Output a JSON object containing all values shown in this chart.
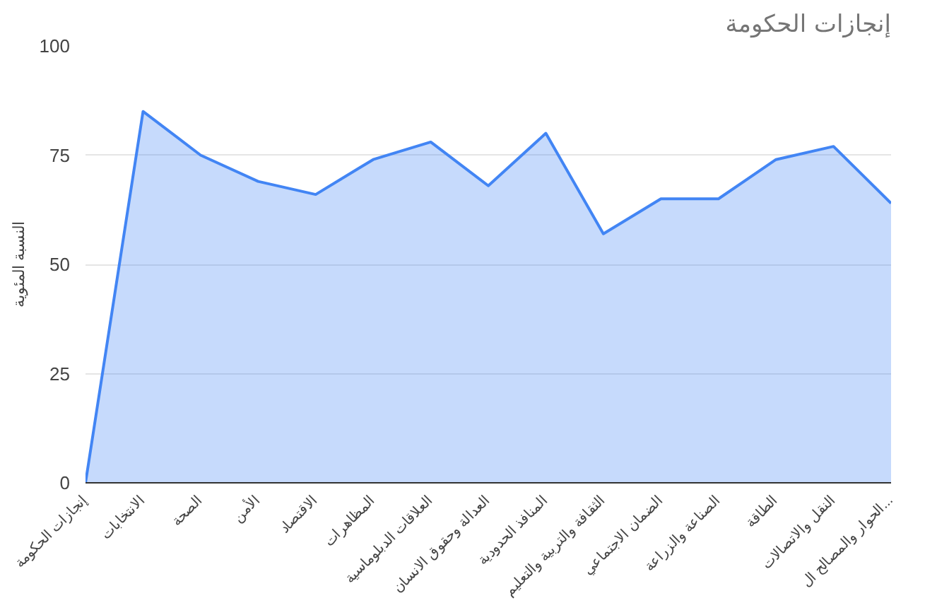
{
  "chart_data": {
    "type": "area",
    "title": "إنجازات الحكومة",
    "ylabel": "النسبة المئوية",
    "categories": [
      "إنجازات الحكومة",
      "الانتخابات",
      "الصحة",
      "الأمن",
      "الاقتصاد",
      "المظاهرات",
      "العلاقات الدبلوماسية",
      "العدالة وحقوق الانسان",
      "المنافذ الحدودية",
      "الثقافة والتربية والتعليم",
      "الضمان الاجتماعي",
      "الصناعة والزراعة",
      "الطاقة",
      "النقل والاتصالات",
      "الحوار والمصالح ال..."
    ],
    "series": [
      {
        "color": "#4285f4",
        "values": [
          0,
          85,
          75,
          69,
          66,
          74,
          78,
          68,
          80,
          57,
          65,
          65,
          74,
          77,
          64
        ]
      }
    ],
    "ylim": [
      0,
      100
    ],
    "yticks": [
      0,
      25,
      50,
      75,
      100
    ],
    "grid": "y"
  }
}
